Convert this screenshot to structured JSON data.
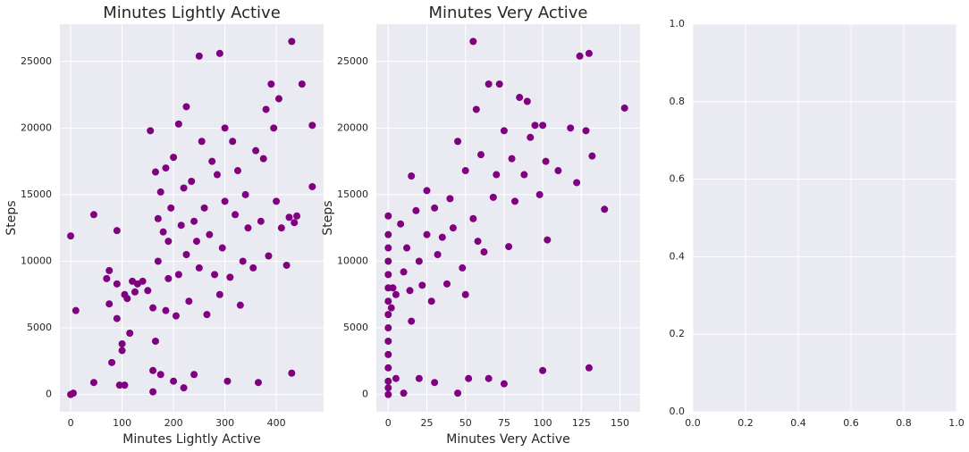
{
  "chart_data": [
    {
      "type": "scatter",
      "title": "Minutes Lightly Active",
      "xlabel": "Minutes Lightly Active",
      "ylabel": "Steps",
      "color": "#800080",
      "grid": true,
      "xlim": [
        -21,
        492
      ],
      "ylim": [
        -1300,
        27800
      ],
      "xticks": [
        0,
        100,
        200,
        300,
        400
      ],
      "yticks": [
        0,
        5000,
        10000,
        15000,
        20000,
        25000
      ],
      "x": [
        0,
        5,
        0,
        10,
        45,
        45,
        70,
        75,
        75,
        80,
        90,
        90,
        90,
        95,
        100,
        100,
        105,
        105,
        110,
        115,
        120,
        125,
        130,
        140,
        150,
        155,
        160,
        160,
        160,
        165,
        165,
        170,
        170,
        175,
        175,
        180,
        185,
        185,
        190,
        190,
        195,
        200,
        200,
        205,
        210,
        210,
        215,
        220,
        220,
        225,
        225,
        230,
        235,
        240,
        240,
        245,
        250,
        250,
        255,
        260,
        265,
        270,
        275,
        280,
        285,
        290,
        290,
        295,
        300,
        300,
        305,
        310,
        315,
        320,
        325,
        330,
        335,
        340,
        345,
        355,
        360,
        365,
        370,
        375,
        380,
        385,
        390,
        395,
        400,
        405,
        410,
        420,
        425,
        430,
        430,
        435,
        440,
        450,
        470,
        470
      ],
      "y": [
        0,
        100,
        11900,
        6300,
        13500,
        900,
        8700,
        9300,
        6800,
        2400,
        5700,
        8300,
        12300,
        700,
        3800,
        3300,
        7500,
        700,
        7200,
        4600,
        8500,
        7700,
        8300,
        8500,
        7800,
        19800,
        6500,
        1800,
        200,
        16700,
        4000,
        13200,
        10000,
        15200,
        1500,
        12200,
        17000,
        6300,
        8700,
        11500,
        14000,
        17800,
        1000,
        5900,
        20300,
        9000,
        12700,
        15500,
        500,
        21600,
        10500,
        7000,
        16000,
        13000,
        1500,
        11500,
        25400,
        9500,
        19000,
        14000,
        6000,
        12000,
        17500,
        9000,
        16500,
        25600,
        7500,
        11000,
        20000,
        14500,
        1000,
        8800,
        19000,
        13500,
        16800,
        6700,
        10000,
        15000,
        12500,
        9500,
        18300,
        900,
        13000,
        17700,
        21400,
        10400,
        23300,
        20000,
        14500,
        22200,
        12500,
        9700,
        13300,
        26500,
        1600,
        12900,
        13400,
        23300,
        20200,
        15600
      ]
    },
    {
      "type": "scatter",
      "title": "Minutes Very Active",
      "xlabel": "Minutes Very Active",
      "ylabel": "Steps",
      "color": "#800080",
      "grid": true,
      "xlim": [
        -7.7,
        163
      ],
      "ylim": [
        -1300,
        27800
      ],
      "xticks": [
        0,
        25,
        50,
        75,
        100,
        125,
        150
      ],
      "yticks": [
        0,
        5000,
        10000,
        15000,
        20000,
        25000
      ],
      "x": [
        0,
        0,
        0,
        0,
        0,
        0,
        0,
        0,
        0,
        0,
        0,
        0,
        0,
        0,
        0,
        2,
        3,
        5,
        5,
        8,
        10,
        10,
        12,
        14,
        15,
        15,
        18,
        20,
        20,
        22,
        25,
        25,
        28,
        30,
        30,
        32,
        35,
        38,
        40,
        42,
        45,
        45,
        48,
        50,
        50,
        52,
        55,
        55,
        57,
        58,
        60,
        62,
        65,
        65,
        68,
        70,
        72,
        75,
        75,
        78,
        80,
        82,
        85,
        88,
        90,
        92,
        95,
        98,
        100,
        100,
        102,
        103,
        110,
        118,
        122,
        124,
        128,
        130,
        130,
        132,
        140,
        153
      ],
      "y": [
        0,
        500,
        1000,
        2000,
        3000,
        4000,
        5000,
        6000,
        7000,
        8000,
        9000,
        10000,
        11000,
        12000,
        13400,
        6500,
        8000,
        7500,
        1200,
        12800,
        9200,
        100,
        11000,
        7800,
        16400,
        5500,
        13800,
        10000,
        1200,
        8200,
        15300,
        12000,
        7000,
        14000,
        900,
        10500,
        11800,
        8300,
        14700,
        12500,
        19000,
        100,
        9500,
        16800,
        7500,
        1200,
        13200,
        26500,
        21400,
        11500,
        18000,
        10700,
        23300,
        1200,
        14800,
        16500,
        23300,
        800,
        19800,
        11100,
        17700,
        14500,
        22300,
        16500,
        22000,
        19300,
        20200,
        15000,
        20200,
        1800,
        17500,
        11600,
        16800,
        20000,
        15900,
        25400,
        19800,
        25600,
        2000,
        17900,
        13900,
        21500
      ]
    },
    {
      "type": "scatter",
      "color": "#800080",
      "grid": true,
      "xlim": [
        0,
        1
      ],
      "ylim": [
        0,
        1
      ],
      "xticks": [
        {
          "value": 0,
          "label": "0.0"
        },
        0.2,
        0.4,
        0.6,
        0.8,
        {
          "value": 1,
          "label": "1.0"
        }
      ],
      "yticks": [
        {
          "value": 0,
          "label": "0.0"
        },
        0.2,
        0.4,
        0.6,
        0.8,
        {
          "value": 1,
          "label": "1.0"
        }
      ],
      "x": [],
      "y": []
    }
  ]
}
